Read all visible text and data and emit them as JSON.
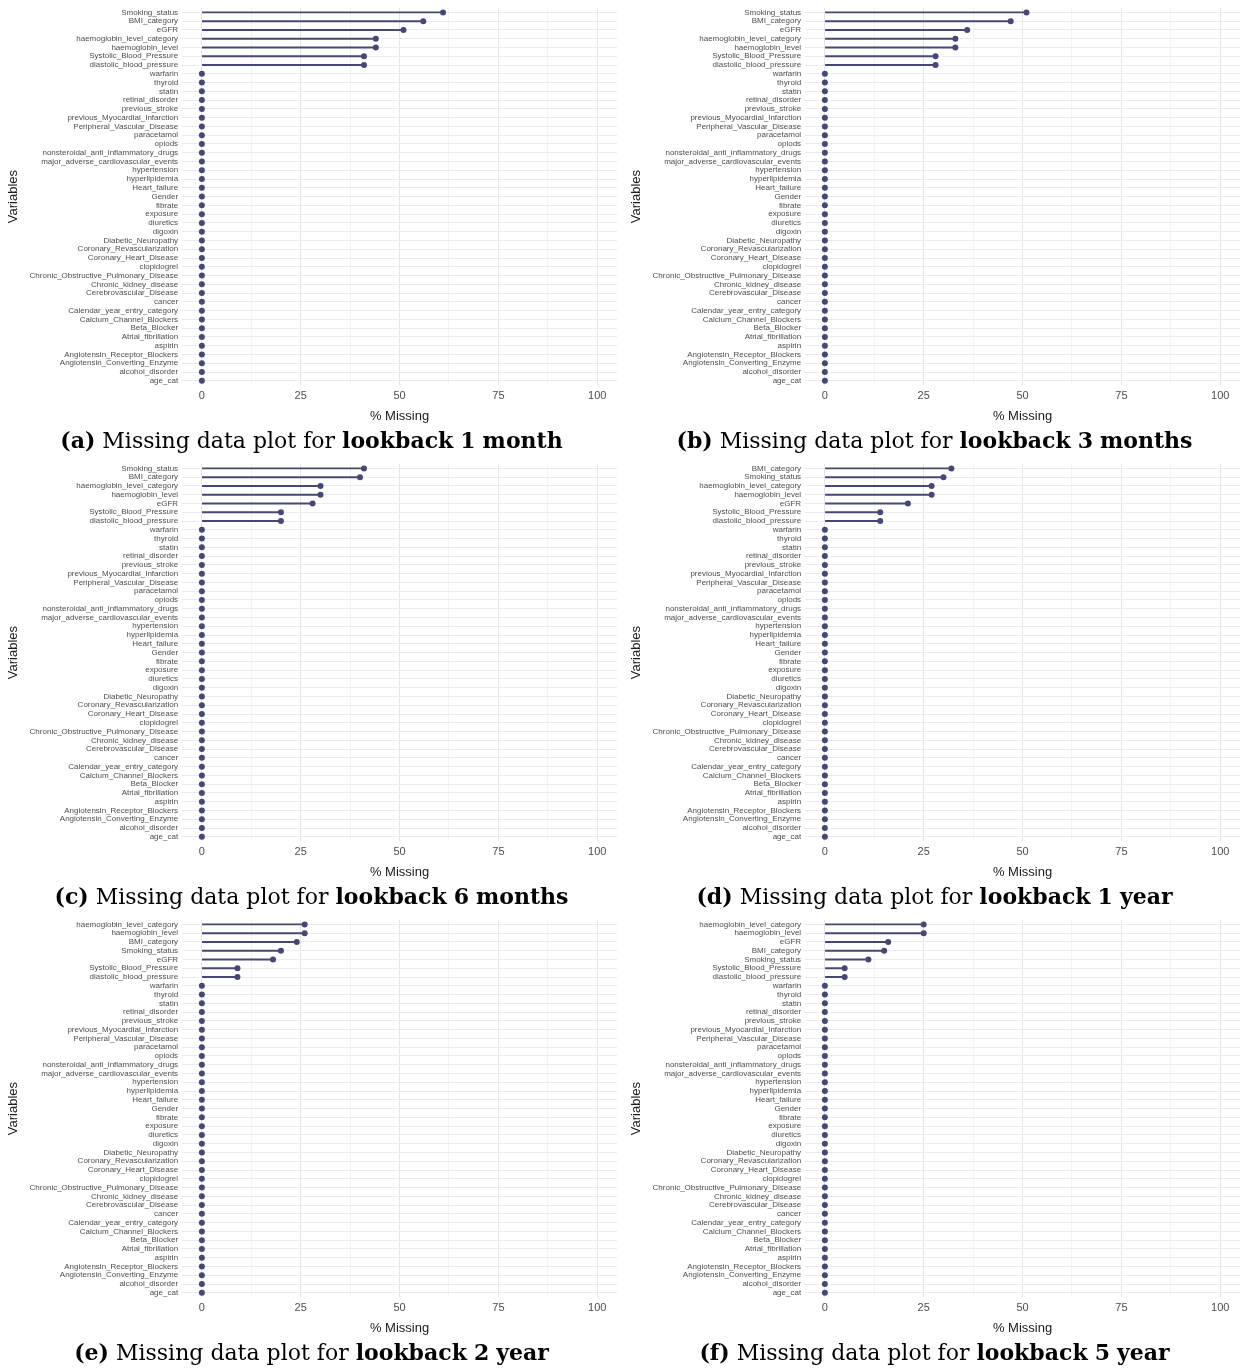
{
  "chart_data": [
    {
      "type": "lollipop",
      "orientation": "horizontal",
      "title": "(a) Missing data plot for lookback 1 month",
      "xlabel": "% Missing",
      "ylabel": "Variables",
      "color": "#464872",
      "marker": "circle",
      "grid": true,
      "xlim": [
        -5,
        105
      ],
      "xticks": [
        0,
        {
          "value": 12.5,
          "label": null
        },
        25,
        {
          "value": 37.5,
          "label": null
        },
        50,
        {
          "value": 62.5,
          "label": null
        },
        75,
        {
          "value": 87.5,
          "label": null
        },
        100
      ],
      "categories": [
        "Smoking_status",
        "BMI_category",
        "eGFR",
        "haemoglobin_level_category",
        "haemoglobin_level",
        "Systolic_Blood_Pressure",
        "diastolic_blood_pressure",
        "warfarin",
        "thyroid",
        "statin",
        "retinal_disorder",
        "previous_stroke",
        "previous_Myocardial_Infarction",
        "Peripheral_Vascular_Disease",
        "paracetamol",
        "opiods",
        "nonsteroidal_anti_inflammatory_drugs",
        "major_adverse_cardiovascular_events",
        "hypertension",
        "hyperlipidemia",
        "Heart_failure",
        "Gender",
        "fibrate",
        "exposure",
        "diuretics",
        "digoxin",
        "Diabetic_Neuropathy",
        "Coronary_Revascularization",
        "Coronary_Heart_Disease",
        "clopidogrel",
        "Chronic_Obstructive_Pulmonary_Disease",
        "Chronic_kidney_disease",
        "Cerebrovascular_Disease",
        "cancer",
        "Calendar_year_entry_category",
        "Calcium_Channel_Blockers",
        "Beta_Blocker",
        "Atrial_fibrillation",
        "aspirin",
        "Angiotensin_Receptor_Blockers",
        "Angiotensin_Converting_Enzyme",
        "alcohol_disorder",
        "age_cat"
      ],
      "values": [
        61,
        56,
        51,
        44,
        44,
        41,
        41,
        0,
        0,
        0,
        0,
        0,
        0,
        0,
        0,
        0,
        0,
        0,
        0,
        0,
        0,
        0,
        0,
        0,
        0,
        0,
        0,
        0,
        0,
        0,
        0,
        0,
        0,
        0,
        0,
        0,
        0,
        0,
        0,
        0,
        0,
        0,
        0
      ]
    },
    {
      "type": "lollipop",
      "orientation": "horizontal",
      "title": "(b) Missing data plot for lookback 3 months",
      "xlabel": "% Missing",
      "ylabel": "Variables",
      "color": "#464872",
      "marker": "circle",
      "grid": true,
      "xlim": [
        -5,
        105
      ],
      "xticks": [
        0,
        {
          "value": 12.5,
          "label": null
        },
        25,
        {
          "value": 37.5,
          "label": null
        },
        50,
        {
          "value": 62.5,
          "label": null
        },
        75,
        {
          "value": 87.5,
          "label": null
        },
        100
      ],
      "categories": [
        "Smoking_status",
        "BMI_category",
        "eGFR",
        "haemoglobin_level_category",
        "haemoglobin_level",
        "Systolic_Blood_Pressure",
        "diastolic_blood_pressure",
        "warfarin",
        "thyroid",
        "statin",
        "retinal_disorder",
        "previous_stroke",
        "previous_Myocardial_Infarction",
        "Peripheral_Vascular_Disease",
        "paracetamol",
        "opiods",
        "nonsteroidal_anti_inflammatory_drugs",
        "major_adverse_cardiovascular_events",
        "hypertension",
        "hyperlipidemia",
        "Heart_failure",
        "Gender",
        "fibrate",
        "exposure",
        "diuretics",
        "digoxin",
        "Diabetic_Neuropathy",
        "Coronary_Revascularization",
        "Coronary_Heart_Disease",
        "clopidogrel",
        "Chronic_Obstructive_Pulmonary_Disease",
        "Chronic_kidney_disease",
        "Cerebrovascular_Disease",
        "cancer",
        "Calendar_year_entry_category",
        "Calcium_Channel_Blockers",
        "Beta_Blocker",
        "Atrial_fibrillation",
        "aspirin",
        "Angiotensin_Receptor_Blockers",
        "Angiotensin_Converting_Enzyme",
        "alcohol_disorder",
        "age_cat"
      ],
      "values": [
        51,
        47,
        36,
        33,
        33,
        28,
        28,
        0,
        0,
        0,
        0,
        0,
        0,
        0,
        0,
        0,
        0,
        0,
        0,
        0,
        0,
        0,
        0,
        0,
        0,
        0,
        0,
        0,
        0,
        0,
        0,
        0,
        0,
        0,
        0,
        0,
        0,
        0,
        0,
        0,
        0,
        0,
        0
      ]
    },
    {
      "type": "lollipop",
      "orientation": "horizontal",
      "title": "(c) Missing data plot for lookback 6 months",
      "xlabel": "% Missing",
      "ylabel": "Variables",
      "color": "#464872",
      "marker": "circle",
      "grid": true,
      "xlim": [
        -5,
        105
      ],
      "xticks": [
        0,
        {
          "value": 12.5,
          "label": null
        },
        25,
        {
          "value": 37.5,
          "label": null
        },
        50,
        {
          "value": 62.5,
          "label": null
        },
        75,
        {
          "value": 87.5,
          "label": null
        },
        100
      ],
      "categories": [
        "Smoking_status",
        "BMI_category",
        "haemoglobin_level_category",
        "haemoglobin_level",
        "eGFR",
        "Systolic_Blood_Pressure",
        "diastolic_blood_pressure",
        "warfarin",
        "thyroid",
        "statin",
        "retinal_disorder",
        "previous_stroke",
        "previous_Myocardial_Infarction",
        "Peripheral_Vascular_Disease",
        "paracetamol",
        "opiods",
        "nonsteroidal_anti_inflammatory_drugs",
        "major_adverse_cardiovascular_events",
        "hypertension",
        "hyperlipidemia",
        "Heart_failure",
        "Gender",
        "fibrate",
        "exposure",
        "diuretics",
        "digoxin",
        "Diabetic_Neuropathy",
        "Coronary_Revascularization",
        "Coronary_Heart_Disease",
        "clopidogrel",
        "Chronic_Obstructive_Pulmonary_Disease",
        "Chronic_kidney_disease",
        "Cerebrovascular_Disease",
        "cancer",
        "Calendar_year_entry_category",
        "Calcium_Channel_Blockers",
        "Beta_Blocker",
        "Atrial_fibrillation",
        "aspirin",
        "Angiotensin_Receptor_Blockers",
        "Angiotensin_Converting_Enzyme",
        "alcohol_disorder",
        "age_cat"
      ],
      "values": [
        41,
        40,
        30,
        30,
        28,
        20,
        20,
        0,
        0,
        0,
        0,
        0,
        0,
        0,
        0,
        0,
        0,
        0,
        0,
        0,
        0,
        0,
        0,
        0,
        0,
        0,
        0,
        0,
        0,
        0,
        0,
        0,
        0,
        0,
        0,
        0,
        0,
        0,
        0,
        0,
        0,
        0,
        0
      ]
    },
    {
      "type": "lollipop",
      "orientation": "horizontal",
      "title": "(d) Missing data plot for lookback 1 year",
      "xlabel": "% Missing",
      "ylabel": "Variables",
      "color": "#464872",
      "marker": "circle",
      "grid": true,
      "xlim": [
        -5,
        105
      ],
      "xticks": [
        0,
        {
          "value": 12.5,
          "label": null
        },
        25,
        {
          "value": 37.5,
          "label": null
        },
        50,
        {
          "value": 62.5,
          "label": null
        },
        75,
        {
          "value": 87.5,
          "label": null
        },
        100
      ],
      "categories": [
        "BMI_category",
        "Smoking_status",
        "haemoglobin_level_category",
        "haemoglobin_level",
        "eGFR",
        "Systolic_Blood_Pressure",
        "diastolic_blood_pressure",
        "warfarin",
        "thyroid",
        "statin",
        "retinal_disorder",
        "previous_stroke",
        "previous_Myocardial_Infarction",
        "Peripheral_Vascular_Disease",
        "paracetamol",
        "opiods",
        "nonsteroidal_anti_inflammatory_drugs",
        "major_adverse_cardiovascular_events",
        "hypertension",
        "hyperlipidemia",
        "Heart_failure",
        "Gender",
        "fibrate",
        "exposure",
        "diuretics",
        "digoxin",
        "Diabetic_Neuropathy",
        "Coronary_Revascularization",
        "Coronary_Heart_Disease",
        "clopidogrel",
        "Chronic_Obstructive_Pulmonary_Disease",
        "Chronic_kidney_disease",
        "Cerebrovascular_Disease",
        "cancer",
        "Calendar_year_entry_category",
        "Calcium_Channel_Blockers",
        "Beta_Blocker",
        "Atrial_fibrillation",
        "aspirin",
        "Angiotensin_Receptor_Blockers",
        "Angiotensin_Converting_Enzyme",
        "alcohol_disorder",
        "age_cat"
      ],
      "values": [
        32,
        30,
        27,
        27,
        21,
        14,
        14,
        0,
        0,
        0,
        0,
        0,
        0,
        0,
        0,
        0,
        0,
        0,
        0,
        0,
        0,
        0,
        0,
        0,
        0,
        0,
        0,
        0,
        0,
        0,
        0,
        0,
        0,
        0,
        0,
        0,
        0,
        0,
        0,
        0,
        0,
        0,
        0
      ]
    },
    {
      "type": "lollipop",
      "orientation": "horizontal",
      "title": "(e) Missing data plot for lookback 2 year",
      "xlabel": "% Missing",
      "ylabel": "Variables",
      "color": "#464872",
      "marker": "circle",
      "grid": true,
      "xlim": [
        -5,
        105
      ],
      "xticks": [
        0,
        {
          "value": 12.5,
          "label": null
        },
        25,
        {
          "value": 37.5,
          "label": null
        },
        50,
        {
          "value": 62.5,
          "label": null
        },
        75,
        {
          "value": 87.5,
          "label": null
        },
        100
      ],
      "categories": [
        "haemoglobin_level_category",
        "haemoglobin_level",
        "BMI_category",
        "Smoking_status",
        "eGFR",
        "Systolic_Blood_Pressure",
        "diastolic_blood_pressure",
        "warfarin",
        "thyroid",
        "statin",
        "retinal_disorder",
        "previous_stroke",
        "previous_Myocardial_Infarction",
        "Peripheral_Vascular_Disease",
        "paracetamol",
        "opiods",
        "nonsteroidal_anti_inflammatory_drugs",
        "major_adverse_cardiovascular_events",
        "hypertension",
        "hyperlipidemia",
        "Heart_failure",
        "Gender",
        "fibrate",
        "exposure",
        "diuretics",
        "digoxin",
        "Diabetic_Neuropathy",
        "Coronary_Revascularization",
        "Coronary_Heart_Disease",
        "clopidogrel",
        "Chronic_Obstructive_Pulmonary_Disease",
        "Chronic_kidney_disease",
        "Cerebrovascular_Disease",
        "cancer",
        "Calendar_year_entry_category",
        "Calcium_Channel_Blockers",
        "Beta_Blocker",
        "Atrial_fibrillation",
        "aspirin",
        "Angiotensin_Receptor_Blockers",
        "Angiotensin_Converting_Enzyme",
        "alcohol_disorder",
        "age_cat"
      ],
      "values": [
        26,
        26,
        24,
        20,
        18,
        9,
        9,
        0,
        0,
        0,
        0,
        0,
        0,
        0,
        0,
        0,
        0,
        0,
        0,
        0,
        0,
        0,
        0,
        0,
        0,
        0,
        0,
        0,
        0,
        0,
        0,
        0,
        0,
        0,
        0,
        0,
        0,
        0,
        0,
        0,
        0,
        0,
        0
      ]
    },
    {
      "type": "lollipop",
      "orientation": "horizontal",
      "title": "(f) Missing data plot for lookback 5 year",
      "xlabel": "% Missing",
      "ylabel": "Variables",
      "color": "#464872",
      "marker": "circle",
      "grid": true,
      "xlim": [
        -5,
        105
      ],
      "xticks": [
        0,
        {
          "value": 12.5,
          "label": null
        },
        25,
        {
          "value": 37.5,
          "label": null
        },
        50,
        {
          "value": 62.5,
          "label": null
        },
        75,
        {
          "value": 87.5,
          "label": null
        },
        100
      ],
      "categories": [
        "haemoglobin_level_category",
        "haemoglobin_level",
        "eGFR",
        "BMI_category",
        "Smoking_status",
        "Systolic_Blood_Pressure",
        "diastolic_blood_pressure",
        "warfarin",
        "thyroid",
        "statin",
        "retinal_disorder",
        "previous_stroke",
        "previous_Myocardial_Infarction",
        "Peripheral_Vascular_Disease",
        "paracetamol",
        "opiods",
        "nonsteroidal_anti_inflammatory_drugs",
        "major_adverse_cardiovascular_events",
        "hypertension",
        "hyperlipidemia",
        "Heart_failure",
        "Gender",
        "fibrate",
        "exposure",
        "diuretics",
        "digoxin",
        "Diabetic_Neuropathy",
        "Coronary_Revascularization",
        "Coronary_Heart_Disease",
        "clopidogrel",
        "Chronic_Obstructive_Pulmonary_Disease",
        "Chronic_kidney_disease",
        "Cerebrovascular_Disease",
        "cancer",
        "Calendar_year_entry_category",
        "Calcium_Channel_Blockers",
        "Beta_Blocker",
        "Atrial_fibrillation",
        "aspirin",
        "Angiotensin_Receptor_Blockers",
        "Angiotensin_Converting_Enzyme",
        "alcohol_disorder",
        "age_cat"
      ],
      "values": [
        25,
        25,
        16,
        15,
        11,
        5,
        5,
        0,
        0,
        0,
        0,
        0,
        0,
        0,
        0,
        0,
        0,
        0,
        0,
        0,
        0,
        0,
        0,
        0,
        0,
        0,
        0,
        0,
        0,
        0,
        0,
        0,
        0,
        0,
        0,
        0,
        0,
        0,
        0,
        0,
        0,
        0,
        0
      ]
    }
  ]
}
